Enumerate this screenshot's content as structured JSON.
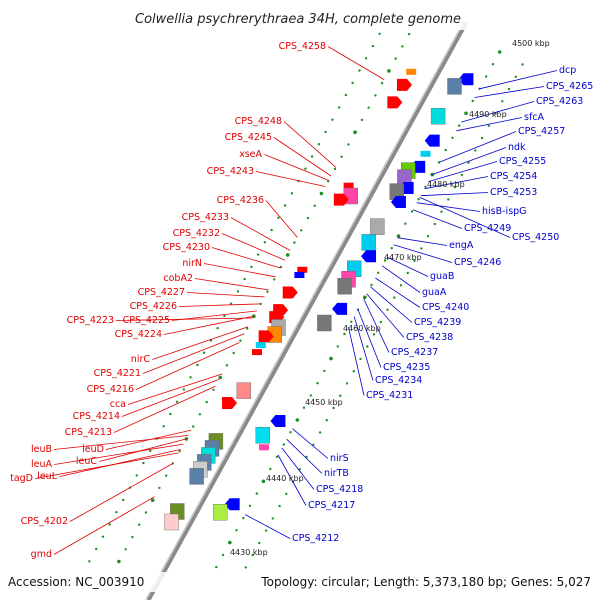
{
  "header": {
    "title": "Colwellia psychrerythraea 34H, complete genome"
  },
  "footer": {
    "accession": "Accession: NC_003910",
    "summary": "Topology: circular; Length: 5,373,180 bp; Genes: 5,027"
  },
  "colors": {
    "backbone": "#8c8c8c",
    "tick": "#1f8f1f",
    "left_label": "#e00000",
    "right_label": "#0000cc",
    "left_gene": "#ff0000",
    "right_gene": "#0000ff"
  },
  "scale_marks": [
    {
      "label": "4500 kbp",
      "position_kbp": 4500
    },
    {
      "label": "4490 kbp",
      "position_kbp": 4490
    },
    {
      "label": "4480 kbp",
      "position_kbp": 4480
    },
    {
      "label": "4470 kbp",
      "position_kbp": 4470
    },
    {
      "label": "4460 kbp",
      "position_kbp": 4460
    },
    {
      "label": "4450 kbp",
      "position_kbp": 4450
    },
    {
      "label": "4440 kbp",
      "position_kbp": 4440
    },
    {
      "label": "4430 kbp",
      "position_kbp": 4430
    }
  ],
  "left_labels": [
    "CPS_4258",
    "CPS_4248",
    "CPS_4245",
    "xseA",
    "CPS_4243",
    "CPS_4236",
    "CPS_4233",
    "CPS_4232",
    "CPS_4230",
    "nirN",
    "cobA2",
    "CPS_4227",
    "CPS_4226",
    "CPS_4225",
    "CPS_4223",
    "CPS_4224",
    "nirC",
    "CPS_4221",
    "CPS_4216",
    "cca",
    "CPS_4214",
    "CPS_4213",
    "leuB",
    "leuD",
    "leuA",
    "leuC",
    "tagD",
    "leuL",
    "CPS_4202",
    "gmd"
  ],
  "right_labels": [
    "dcp",
    "CPS_4265",
    "CPS_4263",
    "sfcA",
    "CPS_4257",
    "ndk",
    "CPS_4255",
    "CPS_4254",
    "CPS_4253",
    "hisB-ispG",
    "CPS_4249",
    "CPS_4250",
    "engA",
    "CPS_4246",
    "guaB",
    "guaA",
    "CPS_4240",
    "CPS_4239",
    "CPS_4238",
    "CPS_4237",
    "CPS_4235",
    "CPS_4234",
    "CPS_4231",
    "nirS",
    "nirTB",
    "CPS_4218",
    "CPS_4217",
    "CPS_4212"
  ]
}
